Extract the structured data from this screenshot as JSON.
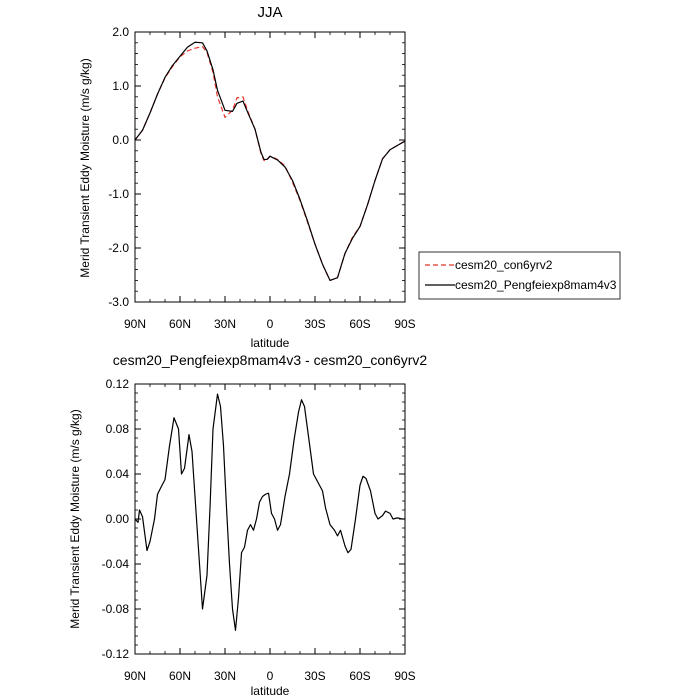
{
  "chart_data": [
    {
      "type": "line",
      "title": "JJA",
      "xlabel": "latitude",
      "ylabel": "Merid Transient Eddy Moisture (m/s g/kg)",
      "xlim": [
        90,
        -90
      ],
      "ylim": [
        -3.0,
        2.0
      ],
      "xticks": [
        90,
        60,
        30,
        0,
        -30,
        -60,
        -90
      ],
      "xtick_labels": [
        "90N",
        "60N",
        "30N",
        "0",
        "30S",
        "60S",
        "90S"
      ],
      "yticks": [
        2.0,
        1.0,
        0.0,
        -1.0,
        -2.0,
        -3.0
      ],
      "ytick_labels": [
        "2.0",
        "1.0",
        "0.0",
        "-1.0",
        "-2.0",
        "-3.0"
      ],
      "legend": "right",
      "series": [
        {
          "name": "cesm20_con6yrv2",
          "color": "#e8342b",
          "style": "dashed",
          "x": [
            90,
            85,
            80,
            75,
            70,
            65,
            60,
            55,
            50,
            45,
            42,
            38,
            35,
            30,
            25,
            22,
            18,
            15,
            10,
            6,
            4,
            2,
            0,
            -2,
            -5,
            -10,
            -15,
            -20,
            -25,
            -30,
            -35,
            -40,
            -45,
            -50,
            -55,
            -60,
            -65,
            -70,
            -75,
            -80,
            -85,
            -90
          ],
          "y": [
            0.0,
            0.18,
            0.5,
            0.85,
            1.15,
            1.36,
            1.54,
            1.65,
            1.7,
            1.73,
            1.62,
            1.25,
            0.8,
            0.42,
            0.55,
            0.78,
            0.8,
            0.55,
            0.2,
            -0.25,
            -0.38,
            -0.37,
            -0.3,
            -0.32,
            -0.36,
            -0.48,
            -0.78,
            -1.12,
            -1.52,
            -1.93,
            -2.3,
            -2.6,
            -2.55,
            -2.1,
            -1.8,
            -1.6,
            -1.2,
            -0.75,
            -0.35,
            -0.18,
            -0.1,
            -0.02
          ]
        },
        {
          "name": "cesm20_Pengfeiexp8mam4v3",
          "color": "#000000",
          "style": "solid",
          "x": [
            90,
            85,
            80,
            75,
            70,
            65,
            60,
            55,
            50,
            45,
            42,
            38,
            35,
            30,
            25,
            22,
            18,
            15,
            10,
            6,
            4,
            2,
            0,
            -2,
            -5,
            -10,
            -15,
            -20,
            -25,
            -30,
            -35,
            -40,
            -45,
            -50,
            -55,
            -60,
            -65,
            -70,
            -75,
            -80,
            -85,
            -90
          ],
          "y": [
            0.0,
            0.18,
            0.5,
            0.85,
            1.16,
            1.38,
            1.55,
            1.72,
            1.81,
            1.8,
            1.65,
            1.3,
            0.92,
            0.55,
            0.53,
            0.68,
            0.72,
            0.52,
            0.2,
            -0.23,
            -0.36,
            -0.36,
            -0.3,
            -0.33,
            -0.37,
            -0.5,
            -0.75,
            -1.1,
            -1.5,
            -1.93,
            -2.3,
            -2.6,
            -2.55,
            -2.1,
            -1.82,
            -1.6,
            -1.2,
            -0.75,
            -0.35,
            -0.18,
            -0.1,
            -0.02
          ]
        }
      ]
    },
    {
      "type": "line",
      "title": "cesm20_Pengfeiexp8mam4v3 - cesm20_con6yrv2",
      "xlabel": "latitude",
      "ylabel": "Merid Transient Eddy Moisture (m/s g/kg)",
      "xlim": [
        90,
        -90
      ],
      "ylim": [
        -0.12,
        0.12
      ],
      "xticks": [
        90,
        60,
        30,
        0,
        -30,
        -60,
        -90
      ],
      "xtick_labels": [
        "90N",
        "60N",
        "30N",
        "0",
        "30S",
        "60S",
        "90S"
      ],
      "yticks": [
        0.12,
        0.08,
        0.04,
        0.0,
        -0.04,
        -0.08,
        -0.12
      ],
      "ytick_labels": [
        "0.12",
        "0.08",
        "0.04",
        "0.00",
        "-0.04",
        "-0.08",
        "-0.12"
      ],
      "series": [
        {
          "color": "#000000",
          "style": "solid",
          "x": [
            90,
            88,
            87,
            85,
            82,
            80,
            77,
            75,
            72,
            70,
            67,
            64,
            61,
            59,
            57,
            54,
            52,
            50,
            47,
            45,
            42,
            40,
            38,
            35,
            33,
            31,
            29,
            27,
            25,
            23,
            21,
            19,
            17,
            15,
            13,
            11,
            9,
            7,
            5,
            3,
            1,
            -1,
            -3,
            -5,
            -7,
            -10,
            -13,
            -16,
            -19,
            -21,
            -23,
            -25,
            -27,
            -29,
            -31,
            -33,
            -35,
            -37,
            -40,
            -43,
            -45,
            -47,
            -50,
            -52,
            -54,
            -57,
            -60,
            -62,
            -64,
            -67,
            -70,
            -72,
            -75,
            -77,
            -80,
            -82,
            -85,
            -88,
            -90
          ],
          "y": [
            0.0,
            -0.003,
            0.008,
            0.002,
            -0.028,
            -0.02,
            0.0,
            0.022,
            0.03,
            0.035,
            0.065,
            0.09,
            0.08,
            0.04,
            0.045,
            0.075,
            0.06,
            0.02,
            -0.04,
            -0.08,
            -0.05,
            0.01,
            0.08,
            0.111,
            0.1,
            0.065,
            0.01,
            -0.04,
            -0.08,
            -0.099,
            -0.07,
            -0.03,
            -0.025,
            -0.01,
            -0.005,
            -0.01,
            0.0,
            0.015,
            0.02,
            0.022,
            0.023,
            0.005,
            0.0,
            -0.01,
            -0.005,
            0.02,
            0.04,
            0.07,
            0.095,
            0.106,
            0.1,
            0.08,
            0.06,
            0.04,
            0.035,
            0.03,
            0.025,
            0.01,
            -0.005,
            -0.01,
            -0.015,
            -0.01,
            -0.024,
            -0.03,
            -0.027,
            0.0,
            0.03,
            0.038,
            0.036,
            0.025,
            0.005,
            0.0,
            0.003,
            0.007,
            0.005,
            0.0,
            0.001,
            0.0,
            0.0
          ]
        }
      ]
    }
  ]
}
